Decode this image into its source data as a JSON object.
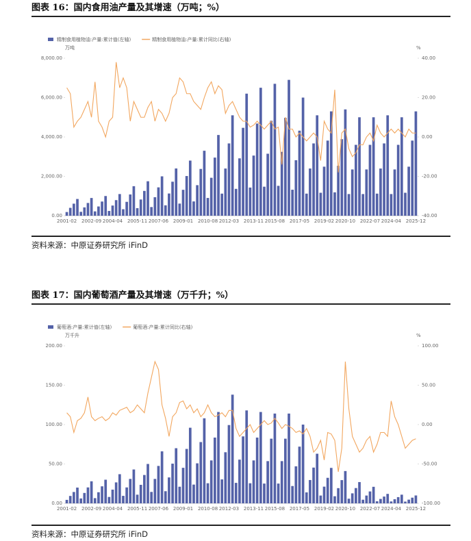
{
  "figures": [
    {
      "title": "图表 16：国内食用油产量及其增速（万吨；%）",
      "source": "资料来源：中原证券研究所 iFinD",
      "chart_data": {
        "type": "bar-line",
        "y_unit": "万吨",
        "y2_unit": "%",
        "categories": [
          "2001-02",
          null,
          null,
          null,
          null,
          null,
          null,
          "2002-09",
          null,
          null,
          null,
          null,
          null,
          "2004-04",
          null,
          null,
          null,
          null,
          null,
          null,
          "2005-11",
          null,
          null,
          null,
          null,
          null,
          "2007-06",
          null,
          null,
          null,
          null,
          null,
          null,
          "2009-01",
          null,
          null,
          null,
          null,
          null,
          null,
          "2010-08",
          null,
          null,
          null,
          null,
          null,
          "2012-03",
          null,
          null,
          null,
          null,
          null,
          null,
          "2013-11",
          null,
          null,
          null,
          null,
          null,
          "2015-08",
          null,
          null,
          null,
          null,
          null,
          null,
          "2017-05",
          null,
          null,
          null,
          null,
          null,
          null,
          "2019-02",
          null,
          null,
          null,
          null,
          null,
          "2020-10",
          null,
          null,
          null,
          null,
          null,
          null,
          "2022-07",
          null,
          null,
          null,
          null,
          null,
          "2024-04",
          null,
          null,
          null,
          null,
          null,
          null,
          "2025-12"
        ],
        "series": [
          {
            "name": "精制食用植物油:产量:累计值(左轴)",
            "color": "#5462a8",
            "kind": "bar",
            "values": [
              187,
              400,
              612,
              850,
              198,
              423,
              648,
              900,
              220,
              470,
              720,
              1000,
              242,
              517,
              792,
              1100,
              330,
              705,
              1080,
              1500,
              385,
              823,
              1260,
              1750,
              440,
              940,
              1440,
              2000,
              528,
              1128,
              1728,
              2400,
              616,
              1316,
              2016,
              2800,
              726,
              1551,
              2376,
              3300,
              902,
              1927,
              2952,
              4100,
              1122,
              2397,
              3672,
              5100,
              1364,
              2914,
              4464,
              6200,
              1430,
              3055,
              4680,
              6500,
              1474,
              3149,
              4824,
              6700,
              1518,
              3243,
              4968,
              6900,
              1320,
              2820,
              4320,
              6000,
              1122,
              2397,
              3672,
              5100,
              1166,
              2491,
              3816,
              5300,
              1188,
              2538,
              3888,
              5400,
              1100,
              2350,
              3600,
              5000,
              1100,
              2350,
              3600,
              5000,
              1122,
              2397,
              3672,
              5100,
              1100,
              2350,
              3600,
              5000,
              1166,
              2491,
              3816,
              5300
            ]
          },
          {
            "name": "精制食用植物油:产量:累计同比(右轴)",
            "color": "#f2a65e",
            "kind": "line",
            "axis": "y2",
            "values": [
              25,
              22,
              5,
              8,
              10,
              14,
              18,
              10,
              28,
              8,
              5,
              0,
              8,
              10,
              38,
              25,
              30,
              25,
              8,
              18,
              14,
              10,
              10,
              15,
              18,
              8,
              14,
              12,
              8,
              12,
              20,
              22,
              30,
              28,
              22,
              22,
              18,
              16,
              14,
              20,
              25,
              28,
              22,
              26,
              24,
              12,
              16,
              18,
              14,
              10,
              8,
              8,
              5,
              6,
              8,
              6,
              4,
              6,
              8,
              4,
              5,
              -14,
              10,
              4,
              4,
              0,
              2,
              0,
              -2,
              0,
              2,
              0,
              -12,
              8,
              4,
              2,
              24,
              -18,
              2,
              4,
              -6,
              -10,
              -8,
              -4,
              -4,
              0,
              2,
              -2,
              6,
              2,
              0,
              2,
              4,
              2,
              4,
              2,
              0,
              4,
              2,
              2
            ]
          }
        ],
        "ylim": [
          0,
          8000
        ],
        "yticks": [
          {
            "value": 0,
            "label": "0.00"
          },
          {
            "value": 2000,
            "label": "2,000.00"
          },
          {
            "value": 4000,
            "label": "4,000.00"
          },
          {
            "value": 6000,
            "label": "6,000.00"
          },
          {
            "value": 8000,
            "label": "8,000.00"
          }
        ],
        "y2lim": [
          -40,
          40
        ],
        "y2ticks": [
          {
            "value": -40,
            "label": "-40.00"
          },
          {
            "value": -20,
            "label": "-20.00"
          },
          {
            "value": 0,
            "label": "0.00"
          },
          {
            "value": 20,
            "label": "20.00"
          },
          {
            "value": 40,
            "label": "40.00"
          }
        ],
        "grid": false,
        "legend": "top-left"
      }
    },
    {
      "title": "图表 17：国内葡萄酒产量及其增速（万千升；%）",
      "source": "资料来源：中原证券研究所 iFinD",
      "chart_data": {
        "type": "bar-line",
        "y_unit": "万千升",
        "y2_unit": "%",
        "categories": [
          "2001-02",
          null,
          null,
          null,
          null,
          null,
          null,
          "2002-09",
          null,
          null,
          null,
          null,
          null,
          "2004-04",
          null,
          null,
          null,
          null,
          null,
          null,
          "2005-11",
          null,
          null,
          null,
          null,
          null,
          "2007-06",
          null,
          null,
          null,
          null,
          null,
          null,
          "2009-01",
          null,
          null,
          null,
          null,
          null,
          null,
          "2010-08",
          null,
          null,
          null,
          null,
          null,
          "2012-03",
          null,
          null,
          null,
          null,
          null,
          null,
          "2013-11",
          null,
          null,
          null,
          null,
          null,
          "2015-08",
          null,
          null,
          null,
          null,
          null,
          null,
          "2017-05",
          null,
          null,
          null,
          null,
          null,
          null,
          "2019-02",
          null,
          null,
          null,
          null,
          null,
          "2020-10",
          null,
          null,
          null,
          null,
          null,
          null,
          "2022-07",
          null,
          null,
          null,
          null,
          null,
          "2024-04",
          null,
          null,
          null,
          null,
          null,
          null,
          "2025-12"
        ],
        "series": [
          {
            "name": "葡萄酒:产量:累计值(左轴)",
            "color": "#5462a8",
            "kind": "bar",
            "values": [
              4.4,
              9.4,
              14.4,
              20,
              6.2,
              13.2,
              20.2,
              28,
              6.6,
              14.1,
              21.6,
              30,
              8.1,
              17.4,
              26.6,
              37,
              9.5,
              20.2,
              31,
              43,
              11,
              23.5,
              36,
              50,
              14.5,
              31,
              47.5,
              66,
              15.4,
              32.9,
              50.4,
              70,
              21.1,
              45.1,
              69.1,
              96,
              23.8,
              50.8,
              77.8,
              108,
              25.5,
              54.5,
              83.5,
              116,
              30.4,
              64.9,
              99.4,
              138,
              26,
              55.5,
              85,
              118,
              25.5,
              54.5,
              83.5,
              116,
              25.1,
              53.6,
              82.1,
              114,
              25.1,
              53.6,
              82.1,
              114,
              22,
              47,
              72,
              100,
              13.9,
              29.6,
              45.4,
              63,
              9.9,
              21.2,
              32.4,
              45,
              9,
              19.3,
              29.5,
              41,
              5.9,
              12.7,
              19.4,
              27,
              4.6,
              9.9,
              15.1,
              21,
              2.6,
              5.6,
              8.6,
              12,
              2.4,
              5.2,
              7.9,
              11,
              2.2,
              4.7,
              7.2,
              10
            ]
          },
          {
            "name": "葡萄酒:产量:累计同比(右轴)",
            "color": "#f2a65e",
            "kind": "line",
            "axis": "y2",
            "values": [
              15,
              10,
              -10,
              5,
              8,
              15,
              35,
              10,
              5,
              8,
              10,
              5,
              8,
              15,
              12,
              18,
              20,
              22,
              15,
              18,
              25,
              20,
              15,
              40,
              60,
              80,
              70,
              25,
              8,
              -15,
              10,
              15,
              28,
              30,
              20,
              25,
              15,
              20,
              10,
              15,
              25,
              15,
              10,
              12,
              15,
              10,
              18,
              18,
              -5,
              -15,
              -10,
              -5,
              0,
              -10,
              -5,
              0,
              5,
              0,
              2,
              8,
              2,
              -5,
              0,
              -2,
              -5,
              -10,
              -8,
              -12,
              -5,
              -15,
              -35,
              -30,
              -20,
              -45,
              -10,
              -12,
              -20,
              -60,
              -30,
              80,
              20,
              -15,
              -25,
              -35,
              -30,
              -20,
              -15,
              -35,
              -25,
              -10,
              -10,
              -15,
              30,
              10,
              0,
              -15,
              -30,
              -25,
              -20,
              -18
            ]
          }
        ],
        "ylim": [
          0,
          200
        ],
        "yticks": [
          {
            "value": 0,
            "label": "0.00"
          },
          {
            "value": 50,
            "label": "50.00"
          },
          {
            "value": 100,
            "label": "100.00"
          },
          {
            "value": 150,
            "label": "150.00"
          },
          {
            "value": 200,
            "label": "200.00"
          }
        ],
        "y2lim": [
          -100,
          100
        ],
        "y2ticks": [
          {
            "value": -100,
            "label": "-100.00"
          },
          {
            "value": -50,
            "label": "-50.00"
          },
          {
            "value": 0,
            "label": "0.00"
          },
          {
            "value": 50,
            "label": "50.00"
          },
          {
            "value": 100,
            "label": "100.00"
          }
        ],
        "grid": false,
        "legend": "top-left"
      }
    }
  ]
}
